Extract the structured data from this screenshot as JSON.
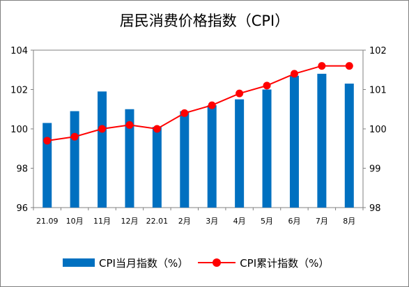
{
  "chart_data": {
    "type": "bar",
    "title": "居民消费价格指数（CPI）",
    "categories": [
      "21.09",
      "10月",
      "11月",
      "12月",
      "22.01",
      "2月",
      "3月",
      "4月",
      "5月",
      "6月",
      "7月",
      "8月"
    ],
    "series": [
      {
        "name": "CPI当月指数（%）",
        "type": "bar",
        "axis": "left",
        "color": "#0070c0",
        "values": [
          100.3,
          100.9,
          101.9,
          101.0,
          100.1,
          100.9,
          101.2,
          101.5,
          102.0,
          102.7,
          102.8,
          102.3
        ]
      },
      {
        "name": "CPI累计指数（%）",
        "type": "line",
        "axis": "right",
        "color": "#ff0000",
        "values": [
          99.7,
          99.8,
          100.0,
          100.1,
          100.0,
          100.4,
          100.6,
          100.9,
          101.1,
          101.4,
          101.6,
          101.6
        ]
      }
    ],
    "y_left": {
      "range": [
        96,
        104
      ],
      "ticks": [
        96,
        98,
        100,
        102,
        104
      ]
    },
    "y_right": {
      "range": [
        98,
        102
      ],
      "ticks": [
        98,
        99,
        100,
        101,
        102
      ]
    },
    "grid": false,
    "legend_position": "bottom"
  }
}
